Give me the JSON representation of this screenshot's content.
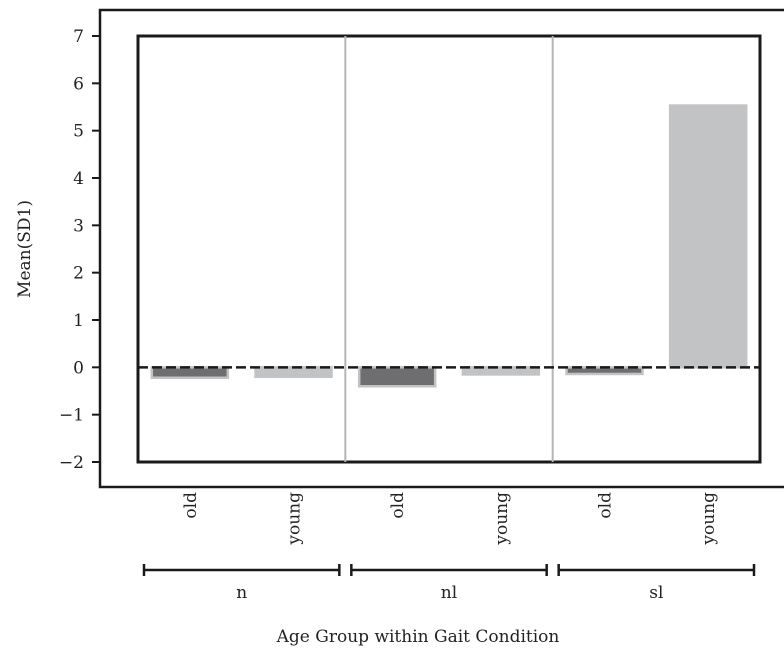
{
  "chart_data": {
    "type": "bar",
    "title": "",
    "ylabel": "Mean(SD1)",
    "xlabel": "Age Group within Gait Condition",
    "ylim": [
      -2,
      7
    ],
    "yticks": [
      -2,
      -1,
      0,
      1,
      2,
      3,
      4,
      5,
      6,
      7
    ],
    "ytick_labels": [
      "−2",
      "−1",
      "0",
      "1",
      "2",
      "3",
      "4",
      "5",
      "6",
      "7"
    ],
    "groups": [
      {
        "label": "n",
        "bars": [
          {
            "category": "old",
            "value": -0.22,
            "color": "#6e6e70",
            "edge": "#c2c3c5"
          },
          {
            "category": "young",
            "value": -0.2,
            "color": "#c2c3c5",
            "edge": "#c2c3c5"
          }
        ]
      },
      {
        "label": "nl",
        "bars": [
          {
            "category": "old",
            "value": -0.4,
            "color": "#6e6e70",
            "edge": "#c2c3c5"
          },
          {
            "category": "young",
            "value": -0.15,
            "color": "#c2c3c5",
            "edge": "#c2c3c5"
          }
        ]
      },
      {
        "label": "sl",
        "bars": [
          {
            "category": "old",
            "value": -0.14,
            "color": "#6e6e70",
            "edge": "#c2c3c5"
          },
          {
            "category": "young",
            "value": 5.53,
            "color": "#c2c3c5",
            "edge": "#c2c3c5"
          }
        ]
      }
    ],
    "zero_line": "dashed",
    "grid": false,
    "legend": "none"
  }
}
